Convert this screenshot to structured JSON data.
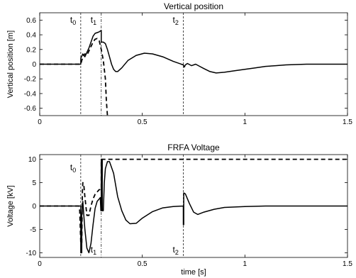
{
  "chart_data": [
    {
      "type": "line",
      "title": "Vertical position",
      "xlabel": "",
      "ylabel": "Vertical position [m]",
      "xlim": [
        0,
        1.5
      ],
      "ylim": [
        -0.7,
        0.7
      ],
      "xticks": [
        0,
        0.5,
        1,
        1.5
      ],
      "xtick_labels": [
        "0",
        "0.5",
        "1",
        "1.5"
      ],
      "yticks": [
        -0.6,
        -0.4,
        -0.2,
        0,
        0.2,
        0.4,
        0.6
      ],
      "ytick_labels": [
        "-0.6",
        "-0.4",
        "-0.2",
        "0",
        "0.2",
        "0.4",
        "0.6"
      ],
      "grid": false,
      "legend": "none",
      "annotations": [
        {
          "base": "t",
          "sub": "0",
          "x": 0.2
        },
        {
          "base": "t",
          "sub": "1",
          "x": 0.3
        },
        {
          "base": "t",
          "sub": "2",
          "x": 0.7
        }
      ],
      "vlines": [
        {
          "x": 0.2,
          "style": "dashed"
        },
        {
          "x": 0.3,
          "style": "dashdot"
        },
        {
          "x": 0.7,
          "style": "dashed"
        }
      ],
      "series": [
        {
          "style": "solid",
          "color": "#000000",
          "points": [
            [
              0,
              0
            ],
            [
              0.2,
              0
            ],
            [
              0.2,
              0.08
            ],
            [
              0.21,
              0.14
            ],
            [
              0.22,
              0.1
            ],
            [
              0.23,
              0.16
            ],
            [
              0.24,
              0.22
            ],
            [
              0.25,
              0.3
            ],
            [
              0.26,
              0.38
            ],
            [
              0.27,
              0.42
            ],
            [
              0.28,
              0.43
            ],
            [
              0.29,
              0.44
            ],
            [
              0.3,
              0.46
            ],
            [
              0.3,
              0.3
            ],
            [
              0.31,
              0.3
            ],
            [
              0.32,
              0.28
            ],
            [
              0.33,
              0.2
            ],
            [
              0.34,
              0.1
            ],
            [
              0.35,
              0.0
            ],
            [
              0.36,
              -0.07
            ],
            [
              0.37,
              -0.1
            ],
            [
              0.38,
              -0.1
            ],
            [
              0.4,
              -0.05
            ],
            [
              0.43,
              0.05
            ],
            [
              0.47,
              0.12
            ],
            [
              0.51,
              0.15
            ],
            [
              0.55,
              0.14
            ],
            [
              0.6,
              0.1
            ],
            [
              0.65,
              0.04
            ],
            [
              0.7,
              -0.01
            ],
            [
              0.705,
              -0.04
            ],
            [
              0.71,
              -0.01
            ],
            [
              0.72,
              0.01
            ],
            [
              0.74,
              -0.02
            ],
            [
              0.76,
              0.0
            ],
            [
              0.78,
              -0.03
            ],
            [
              0.8,
              -0.06
            ],
            [
              0.83,
              -0.1
            ],
            [
              0.86,
              -0.12
            ],
            [
              0.9,
              -0.11
            ],
            [
              0.95,
              -0.09
            ],
            [
              1.0,
              -0.07
            ],
            [
              1.05,
              -0.05
            ],
            [
              1.1,
              -0.03
            ],
            [
              1.15,
              -0.02
            ],
            [
              1.2,
              -0.01
            ],
            [
              1.3,
              0
            ],
            [
              1.5,
              0
            ]
          ]
        },
        {
          "style": "dashed",
          "color": "#000000",
          "points": [
            [
              0,
              0
            ],
            [
              0.2,
              0
            ],
            [
              0.205,
              0.05
            ],
            [
              0.21,
              0.1
            ],
            [
              0.22,
              0.14
            ],
            [
              0.23,
              0.12
            ],
            [
              0.24,
              0.18
            ],
            [
              0.25,
              0.24
            ],
            [
              0.26,
              0.3
            ],
            [
              0.27,
              0.34
            ],
            [
              0.28,
              0.35
            ],
            [
              0.29,
              0.32
            ],
            [
              0.3,
              0.2
            ],
            [
              0.31,
              0.05
            ],
            [
              0.32,
              -0.2
            ],
            [
              0.325,
              -0.5
            ],
            [
              0.33,
              -0.7
            ]
          ]
        }
      ]
    },
    {
      "type": "line",
      "title": "FRFA Voltage",
      "xlabel": "time [s]",
      "ylabel": "Voltage [kV]",
      "xlim": [
        0,
        1.5
      ],
      "ylim": [
        -11,
        11
      ],
      "xticks": [
        0,
        0.5,
        1,
        1.5
      ],
      "xtick_labels": [
        "0",
        "0.5",
        "1",
        "1.5"
      ],
      "yticks": [
        -10,
        -5,
        0,
        5,
        10
      ],
      "ytick_labels": [
        "-10",
        "-5",
        "0",
        "5",
        "10"
      ],
      "grid": false,
      "legend": "none",
      "annotations": [
        {
          "base": "t",
          "sub": "0",
          "x": 0.2
        },
        {
          "base": "t",
          "sub": "1",
          "x": 0.3
        },
        {
          "base": "t",
          "sub": "2",
          "x": 0.7
        }
      ],
      "vlines": [
        {
          "x": 0.2,
          "style": "dashed"
        },
        {
          "x": 0.3,
          "style": "dashdot"
        },
        {
          "x": 0.7,
          "style": "dashed"
        }
      ],
      "series": [
        {
          "style": "solid",
          "color": "#000000",
          "points": [
            [
              0,
              0
            ],
            [
              0.2,
              0
            ],
            [
              0.2,
              -10
            ],
            [
              0.205,
              -10
            ],
            [
              0.205,
              -2
            ],
            [
              0.21,
              1
            ],
            [
              0.215,
              -2
            ],
            [
              0.22,
              -5
            ],
            [
              0.23,
              -9
            ],
            [
              0.24,
              -10
            ],
            [
              0.25,
              -8
            ],
            [
              0.26,
              -4
            ],
            [
              0.27,
              -0.5
            ],
            [
              0.28,
              1
            ],
            [
              0.29,
              1.5
            ],
            [
              0.295,
              1.8
            ],
            [
              0.298,
              -1
            ],
            [
              0.3,
              -1
            ],
            [
              0.3,
              10
            ],
            [
              0.305,
              10
            ],
            [
              0.305,
              -1
            ],
            [
              0.31,
              -1
            ],
            [
              0.315,
              5
            ],
            [
              0.32,
              8
            ],
            [
              0.33,
              9.5
            ],
            [
              0.34,
              9.5
            ],
            [
              0.36,
              7
            ],
            [
              0.38,
              2
            ],
            [
              0.4,
              -1
            ],
            [
              0.42,
              -3
            ],
            [
              0.44,
              -3.8
            ],
            [
              0.47,
              -3.7
            ],
            [
              0.5,
              -2.6
            ],
            [
              0.55,
              -1.2
            ],
            [
              0.6,
              -0.4
            ],
            [
              0.65,
              -0.1
            ],
            [
              0.7,
              0
            ],
            [
              0.7,
              -4
            ],
            [
              0.702,
              -4
            ],
            [
              0.702,
              2.8
            ],
            [
              0.71,
              2.6
            ],
            [
              0.73,
              0.5
            ],
            [
              0.75,
              -1.3
            ],
            [
              0.77,
              -1.8
            ],
            [
              0.8,
              -1.3
            ],
            [
              0.85,
              -0.7
            ],
            [
              0.9,
              -0.3
            ],
            [
              1.0,
              -0.1
            ],
            [
              1.1,
              0
            ],
            [
              1.5,
              0
            ]
          ]
        },
        {
          "style": "dashed",
          "color": "#000000",
          "points": [
            [
              0,
              0
            ],
            [
              0.19,
              0
            ],
            [
              0.195,
              -1
            ],
            [
              0.2,
              -8
            ],
            [
              0.205,
              -8
            ],
            [
              0.208,
              3
            ],
            [
              0.21,
              5
            ],
            [
              0.215,
              4.5
            ],
            [
              0.22,
              2
            ],
            [
              0.23,
              -2
            ],
            [
              0.24,
              -2
            ],
            [
              0.25,
              0
            ],
            [
              0.26,
              1.5
            ],
            [
              0.27,
              2.5
            ],
            [
              0.28,
              3
            ],
            [
              0.29,
              3.5
            ],
            [
              0.3,
              3.5
            ],
            [
              0.3,
              10
            ],
            [
              1.5,
              10
            ]
          ]
        }
      ]
    }
  ]
}
